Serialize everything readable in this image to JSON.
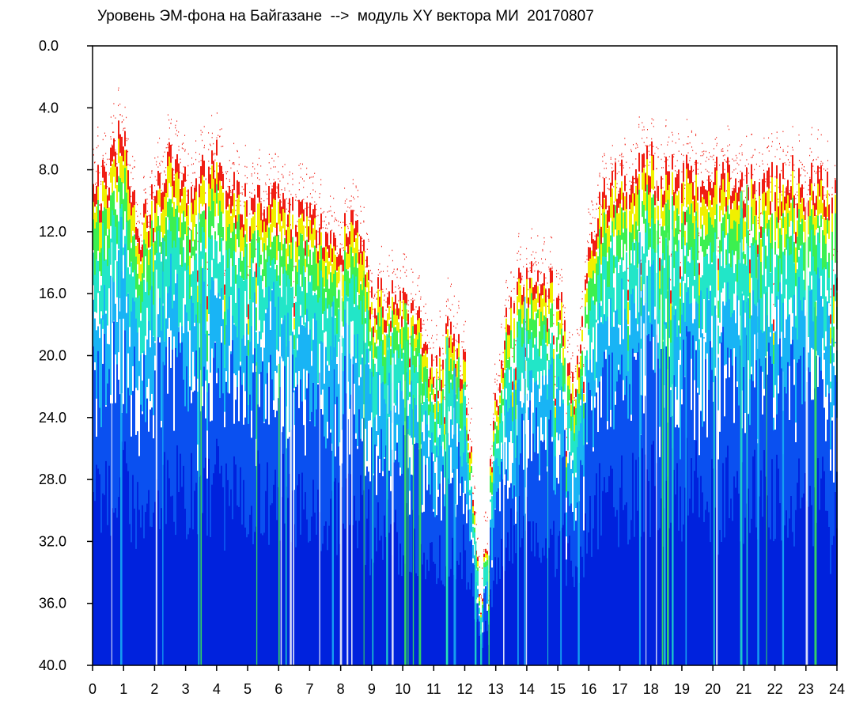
{
  "chart_data": {
    "type": "heatmap",
    "title": "Уровень ЭМ-фона на Байгазане  -->  модуль XY вектора МИ  20170807",
    "xlabel": "",
    "ylabel": "",
    "xlim": [
      0,
      24
    ],
    "ylim": [
      0,
      40
    ],
    "y_inverted": true,
    "x_ticks": [
      "0",
      "1",
      "2",
      "3",
      "4",
      "5",
      "6",
      "7",
      "8",
      "9",
      "10",
      "11",
      "12",
      "13",
      "14",
      "15",
      "16",
      "17",
      "18",
      "19",
      "20",
      "21",
      "22",
      "23",
      "24"
    ],
    "y_ticks": [
      "0.0",
      "4.0",
      "8.0",
      "12.0",
      "16.0",
      "20.0",
      "24.0",
      "28.0",
      "32.0",
      "36.0",
      "40.0"
    ],
    "colormap": [
      "#0022dd",
      "#0a50f0",
      "#19b4f5",
      "#22e6c8",
      "#3cf050",
      "#f0f000",
      "#f01e14"
    ],
    "signal_top_by_hour": [
      {
        "x": 0.0,
        "y": 9.0
      },
      {
        "x": 0.5,
        "y": 8.5
      },
      {
        "x": 1.0,
        "y": 5.0
      },
      {
        "x": 1.5,
        "y": 12.5
      },
      {
        "x": 2.0,
        "y": 9.5
      },
      {
        "x": 2.5,
        "y": 7.0
      },
      {
        "x": 3.0,
        "y": 9.0
      },
      {
        "x": 3.5,
        "y": 8.5
      },
      {
        "x": 4.0,
        "y": 7.0
      },
      {
        "x": 4.5,
        "y": 9.5
      },
      {
        "x": 5.0,
        "y": 10.5
      },
      {
        "x": 5.5,
        "y": 10.0
      },
      {
        "x": 6.0,
        "y": 10.0
      },
      {
        "x": 6.5,
        "y": 11.0
      },
      {
        "x": 7.0,
        "y": 11.5
      },
      {
        "x": 7.5,
        "y": 12.0
      },
      {
        "x": 8.0,
        "y": 12.5
      },
      {
        "x": 8.5,
        "y": 11.5
      },
      {
        "x": 9.0,
        "y": 16.0
      },
      {
        "x": 9.5,
        "y": 16.5
      },
      {
        "x": 10.0,
        "y": 16.5
      },
      {
        "x": 10.5,
        "y": 17.5
      },
      {
        "x": 11.0,
        "y": 22.0
      },
      {
        "x": 11.5,
        "y": 18.0
      },
      {
        "x": 12.0,
        "y": 21.0
      },
      {
        "x": 12.5,
        "y": 36.0
      },
      {
        "x": 13.0,
        "y": 23.0
      },
      {
        "x": 13.5,
        "y": 15.5
      },
      {
        "x": 14.0,
        "y": 15.5
      },
      {
        "x": 14.5,
        "y": 14.5
      },
      {
        "x": 15.0,
        "y": 15.5
      },
      {
        "x": 15.5,
        "y": 22.5
      },
      {
        "x": 16.0,
        "y": 13.0
      },
      {
        "x": 16.5,
        "y": 9.5
      },
      {
        "x": 17.0,
        "y": 8.5
      },
      {
        "x": 17.5,
        "y": 8.5
      },
      {
        "x": 18.0,
        "y": 7.0
      },
      {
        "x": 18.5,
        "y": 8.5
      },
      {
        "x": 19.0,
        "y": 7.5
      },
      {
        "x": 19.5,
        "y": 8.5
      },
      {
        "x": 20.0,
        "y": 8.5
      },
      {
        "x": 20.5,
        "y": 8.5
      },
      {
        "x": 21.0,
        "y": 9.0
      },
      {
        "x": 21.5,
        "y": 8.5
      },
      {
        "x": 22.0,
        "y": 9.0
      },
      {
        "x": 22.5,
        "y": 8.5
      },
      {
        "x": 23.0,
        "y": 9.0
      },
      {
        "x": 23.5,
        "y": 9.0
      },
      {
        "x": 24.0,
        "y": 9.0
      }
    ]
  }
}
